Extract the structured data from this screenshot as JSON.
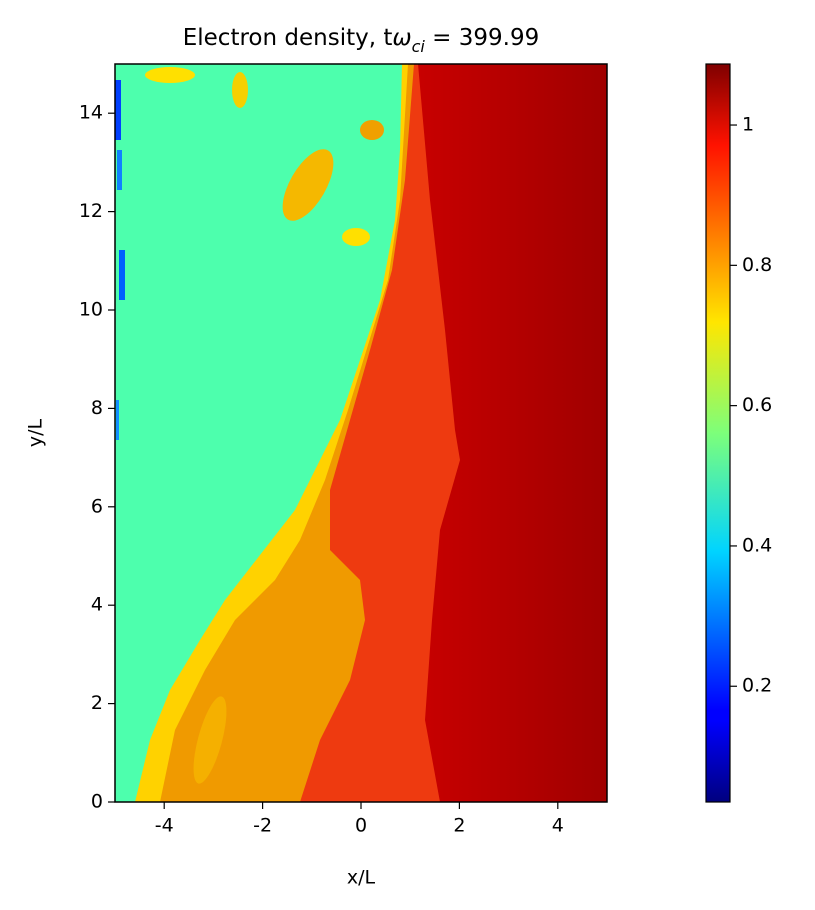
{
  "chart_data": {
    "type": "heatmap",
    "title_parts": [
      "Electron density, t",
      "ω",
      "ci",
      " = 399.99"
    ],
    "x_label": "x/L",
    "y_label": "y/L",
    "xlim": [
      -5,
      5
    ],
    "xticks": [
      -4,
      -2,
      0,
      2,
      4
    ],
    "ylim": [
      0,
      15
    ],
    "yticks": [
      0,
      2,
      4,
      6,
      8,
      10,
      12,
      14
    ],
    "colormap": "jet",
    "clim": [
      0.035,
      1.087
    ],
    "cticks": [
      0.2,
      0.4,
      0.6,
      0.8,
      1.0
    ]
  }
}
